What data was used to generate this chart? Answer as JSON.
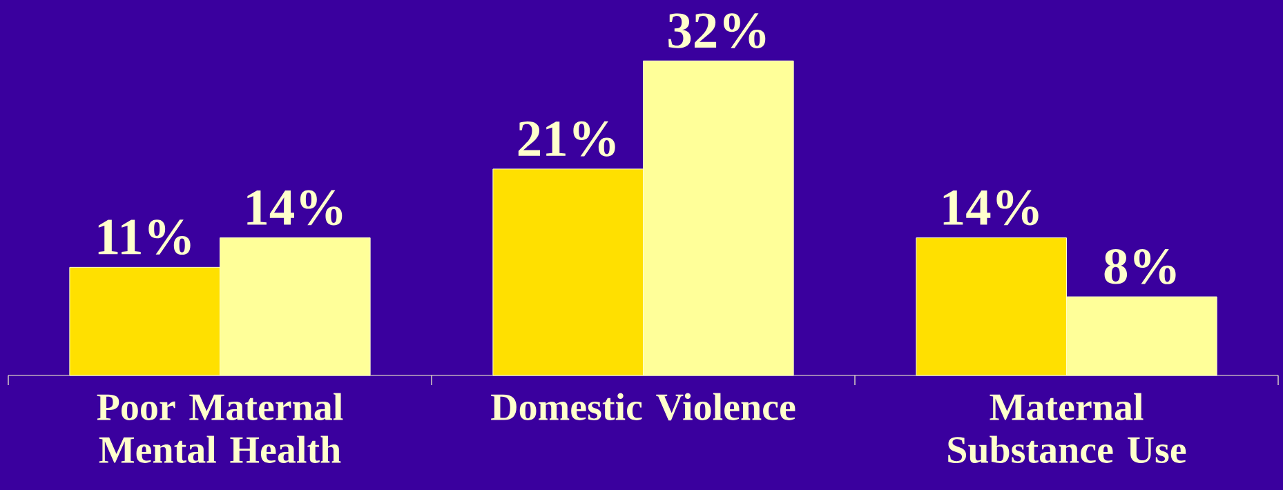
{
  "chart_data": {
    "type": "bar",
    "categories": [
      "Poor Maternal Mental Health",
      "Domestic Violence",
      "Maternal Substance Use"
    ],
    "series": [
      {
        "color": "#ffe000",
        "values": [
          11,
          21,
          14
        ],
        "value_labels": [
          "11%",
          "21%",
          "14%"
        ]
      },
      {
        "color": "#ffff99",
        "values": [
          14,
          32,
          8
        ],
        "value_labels": [
          "14%",
          "32%",
          "8%"
        ]
      }
    ],
    "tick_labels": "x"
  }
}
